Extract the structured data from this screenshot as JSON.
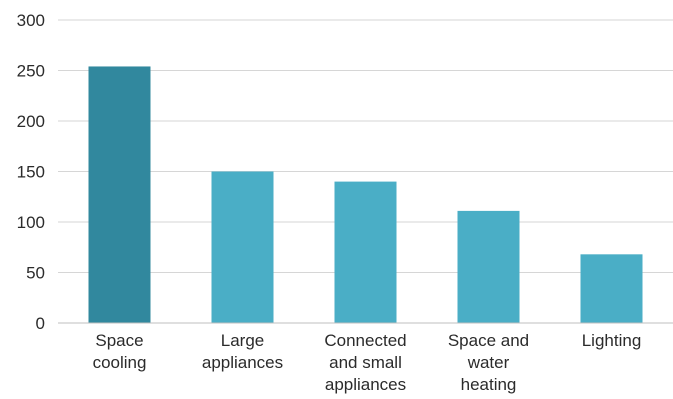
{
  "chart_data": {
    "type": "bar",
    "title": "",
    "xlabel": "",
    "ylabel": "",
    "categories": [
      [
        "Space",
        "cooling"
      ],
      [
        "Large",
        "appliances"
      ],
      [
        "Connected",
        "and small",
        "appliances"
      ],
      [
        "Space and",
        "water",
        "heating"
      ],
      [
        "Lighting"
      ]
    ],
    "values": [
      254,
      150,
      140,
      111,
      68
    ],
    "ylim": [
      0,
      300
    ],
    "yticks": [
      0,
      50,
      100,
      150,
      200,
      250,
      300
    ],
    "grid": true,
    "legend": "none",
    "colors": {
      "highlight": "#31889e",
      "default": "#4aaec6"
    },
    "highlight_index": 0
  }
}
